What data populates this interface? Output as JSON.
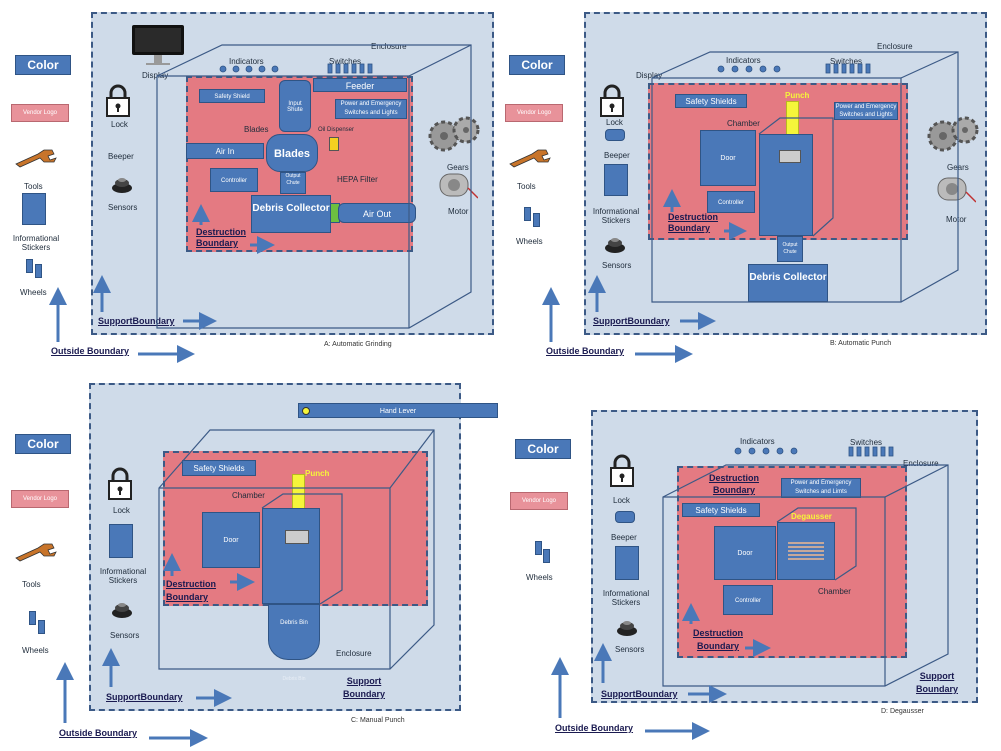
{
  "panel_a": {
    "caption": "A:  Automatic Grinding",
    "color": "Color",
    "vendor_logo": "Vendor Logo",
    "tools": "Tools",
    "informational_stickers": "Informational Stickers",
    "wheels": "Wheels",
    "outside_boundary": "Outside Boundary",
    "display": "Display",
    "lock": "Lock",
    "beeper": "Beeper",
    "sensors": "Sensors",
    "support_boundary": "SupportBoundary",
    "enclosure": "Enclosure",
    "indicators": "Indicators",
    "switches": "Switches",
    "safety_shield": "Safety Shield",
    "input_shute": "Input Shute",
    "feeder": "Feeder",
    "power_switches": "Power and Emergency Switches and Lights",
    "blades_label": "Blades",
    "blades": "Blades",
    "oil_dispenser": "Oil Dispenser",
    "air_in": "Air In",
    "output_chute": "Output Chute",
    "hepa_filter": "HEPA Filter",
    "controller": "Controller",
    "debris_collector": "Debris Collector",
    "air_out": "Air Out",
    "destruction_boundary": "Destruction Boundary",
    "gears": "Gears",
    "motor": "Motor"
  },
  "panel_b": {
    "caption": "B: Automatic Punch",
    "color": "Color",
    "vendor_logo": "Vendor Logo",
    "tools": "Tools",
    "wheels": "Wheels",
    "outside_boundary": "Outside Boundary",
    "display": "Display",
    "lock": "Lock",
    "beeper": "Beeper",
    "informational_stickers": "Informational Stickers",
    "sensors": "Sensors",
    "support_boundary": "SupportBoundary",
    "enclosure": "Enclosure",
    "indicators": "Indicators",
    "switches": "Switches",
    "safety_shields": "Safety Shields",
    "punch": "Punch",
    "power_switches": "Power and Emergency Switches and Lights",
    "chamber": "Chamber",
    "door": "Door",
    "controller": "Controller",
    "destruction_boundary": "Destruction Boundary",
    "output_chute": "Output Chute",
    "debris_collector": "Debris Collector",
    "gears": "Gears",
    "motor": "Motor"
  },
  "panel_c": {
    "caption": "C: Manual Punch",
    "color": "Color",
    "vendor_logo": "Vendor Logo",
    "tools": "Tools",
    "wheels": "Wheels",
    "outside_boundary": "Outside Boundary",
    "hand_lever": "Hand Lever",
    "lock": "Lock",
    "informational_stickers": "Informational Stickers",
    "sensors": "Sensors",
    "support_boundary": "SupportBoundary",
    "safety_shields": "Safety Shields",
    "punch": "Punch",
    "chamber": "Chamber",
    "door": "Door",
    "destruction_boundary": "Destruction Boundary",
    "debris_bin": "Debris Bin",
    "debris_bin_faded": "Debris Bin",
    "enclosure": "Enclosure",
    "support_boundary_right": "Support Boundary"
  },
  "panel_d": {
    "caption": "D: Degausser",
    "color": "Color",
    "vendor_logo": "Vendor Logo",
    "wheels": "Wheels",
    "outside_boundary": "Outside Boundary",
    "lock": "Lock",
    "beeper": "Beeper",
    "informational_stickers": "Informational Stickers",
    "sensors": "Sensors",
    "support_boundary": "SupportBoundary",
    "indicators": "Indicators",
    "switches": "Switches",
    "enclosure": "Enclosure",
    "destruction_boundary_top": "Destruction Boundary",
    "power_switches": "Power and Emergency Switches and Limts",
    "safety_shields": "Safety Shields",
    "degausser": "Degausser",
    "door": "Door",
    "chamber": "Chamber",
    "controller": "Controller",
    "destruction_boundary": "Destruction Boundary",
    "support_boundary_right": "Support Boundary"
  },
  "colors": {
    "panel_bg": "#cfdbe9",
    "destruction_zone": "#e47a82",
    "component": "#4a78b8",
    "punch": "#f5f53a",
    "vendor_logo": "#e8929a"
  }
}
